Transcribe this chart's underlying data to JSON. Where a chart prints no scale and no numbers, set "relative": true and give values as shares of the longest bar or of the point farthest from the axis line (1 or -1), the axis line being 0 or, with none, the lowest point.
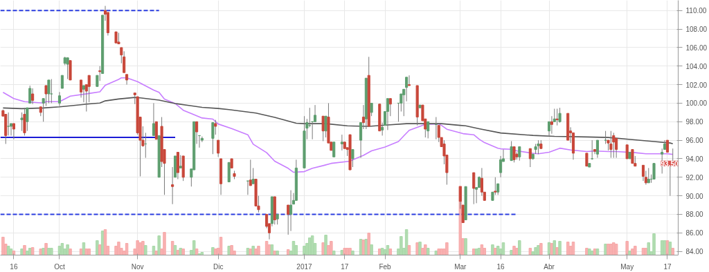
{
  "chart_data": [
    {
      "type": "candlestick",
      "x": [
        "2016-09-12",
        "2016-09-13",
        "2016-09-14",
        "2016-09-15",
        "2016-09-16",
        "2016-09-19",
        "2016-09-20",
        "2016-09-21",
        "2016-09-22",
        "2016-09-23",
        "2016-09-26",
        "2016-09-27",
        "2016-09-28",
        "2016-09-29",
        "2016-09-30",
        "2016-10-03",
        "2016-10-04",
        "2016-10-05",
        "2016-10-06",
        "2016-10-07",
        "2016-10-11",
        "2016-10-12",
        "2016-10-13",
        "2016-10-14",
        "2016-10-17",
        "2016-10-18",
        "2016-10-19",
        "2016-10-20",
        "2016-10-21",
        "2016-10-24",
        "2016-10-25",
        "2016-10-26",
        "2016-10-27",
        "2016-10-28",
        "2016-10-31",
        "2016-11-01",
        "2016-11-02",
        "2016-11-03",
        "2016-11-04",
        "2016-11-07",
        "2016-11-08",
        "2016-11-09",
        "2016-11-10",
        "2016-11-11",
        "2016-11-14",
        "2016-11-15",
        "2016-11-16",
        "2016-11-17",
        "2016-11-18",
        "2016-11-21",
        "2016-11-22",
        "2016-11-23",
        "2016-11-24",
        "2016-11-25",
        "2016-11-29",
        "2016-11-30",
        "2016-12-01",
        "2016-12-02",
        "2016-12-05",
        "2016-12-06",
        "2016-12-07",
        "2016-12-12",
        "2016-12-13",
        "2016-12-14",
        "2016-12-15",
        "2016-12-16",
        "2016-12-19",
        "2016-12-20",
        "2016-12-21",
        "2016-12-22",
        "2016-12-23",
        "2016-12-27",
        "2016-12-28",
        "2016-12-29",
        "2016-12-30",
        "2017-01-02",
        "2017-01-03",
        "2017-01-04",
        "2017-01-05",
        "2017-01-06",
        "2017-01-09",
        "2017-01-10",
        "2017-01-11",
        "2017-01-12",
        "2017-01-13",
        "2017-01-16",
        "2017-01-17",
        "2017-01-18",
        "2017-01-19",
        "2017-01-20",
        "2017-01-23",
        "2017-01-24",
        "2017-01-25",
        "2017-01-26",
        "2017-01-27",
        "2017-01-30",
        "2017-01-31",
        "2017-02-01",
        "2017-02-02",
        "2017-02-03",
        "2017-02-06",
        "2017-02-07",
        "2017-02-08",
        "2017-02-09",
        "2017-02-10",
        "2017-02-13",
        "2017-02-14",
        "2017-02-15",
        "2017-02-16",
        "2017-02-17",
        "2017-02-20",
        "2017-02-21",
        "2017-02-22",
        "2017-02-23",
        "2017-02-24",
        "2017-03-01",
        "2017-03-02",
        "2017-03-03",
        "2017-03-06",
        "2017-03-07",
        "2017-03-08",
        "2017-03-09",
        "2017-03-10",
        "2017-03-13",
        "2017-03-14",
        "2017-03-15",
        "2017-03-16",
        "2017-03-17",
        "2017-03-20",
        "2017-03-21",
        "2017-03-22",
        "2017-03-23",
        "2017-03-27",
        "2017-03-28",
        "2017-03-29",
        "2017-03-30",
        "2017-03-31",
        "2017-04-03",
        "2017-04-04",
        "2017-04-05",
        "2017-04-06",
        "2017-04-07",
        "2017-04-10",
        "2017-04-11",
        "2017-04-12",
        "2017-04-17",
        "2017-04-18",
        "2017-04-19",
        "2017-04-20",
        "2017-04-21",
        "2017-04-24",
        "2017-04-25",
        "2017-04-26",
        "2017-04-27",
        "2017-04-28",
        "2017-05-02",
        "2017-05-03",
        "2017-05-04",
        "2017-05-05",
        "2017-05-08",
        "2017-05-09",
        "2017-05-10",
        "2017-05-11",
        "2017-05-12",
        "2017-05-15",
        "2017-05-16",
        "2017-05-17",
        "2017-05-18",
        "2017-05-19"
      ],
      "ohlc": [
        [
          99.2,
          99.3,
          98.6,
          98.6
        ],
        [
          98.8,
          98.8,
          95.6,
          96.5
        ],
        [
          97.5,
          99.0,
          96.5,
          97.5
        ],
        [
          97.5,
          97.8,
          96.5,
          97.8
        ],
        [
          97.8,
          97.8,
          96.1,
          97.2
        ],
        [
          98.2,
          99.0,
          97.0,
          98.4
        ],
        [
          98.8,
          99.5,
          96.5,
          96.8
        ],
        [
          98.0,
          99.5,
          97.0,
          99.5
        ],
        [
          100.0,
          101.9,
          100.0,
          101.6
        ],
        [
          101.0,
          101.6,
          99.9,
          100.3
        ],
        [
          99.6,
          99.6,
          98.6,
          99.0
        ],
        [
          100.0,
          100.5,
          98.0,
          100.5
        ],
        [
          101.9,
          101.9,
          99.7,
          101.0
        ],
        [
          101.0,
          102.5,
          100.0,
          102.5
        ],
        [
          101.0,
          102.6,
          100.0,
          101.0
        ],
        [
          100.0,
          101.2,
          99.7,
          100.8
        ],
        [
          101.6,
          103.0,
          101.6,
          103.0
        ],
        [
          104.3,
          105.0,
          104.1,
          104.9
        ],
        [
          104.2,
          104.9,
          102.6,
          104.9
        ],
        [
          104.6,
          104.6,
          102.5,
          102.5
        ],
        [
          102.5,
          102.5,
          100.6,
          101.2
        ],
        [
          101.5,
          101.9,
          100.1,
          101.9
        ],
        [
          102.0,
          102.0,
          99.1,
          101.3
        ],
        [
          103.0,
          103.0,
          100.1,
          101.8
        ],
        [
          101.8,
          103.0,
          101.8,
          103.0
        ],
        [
          103.5,
          104.0,
          102.4,
          103.4
        ],
        [
          103.2,
          109.5,
          103.2,
          109.5
        ],
        [
          110.0,
          110.5,
          108.9,
          109.6
        ],
        [
          109.8,
          109.8,
          107.3,
          107.6
        ],
        [
          107.7,
          107.7,
          106.5,
          106.5
        ],
        [
          106.6,
          107.6,
          106.4,
          106.4
        ],
        [
          106.0,
          106.0,
          104.3,
          105.2
        ],
        [
          105.0,
          105.6,
          103.3,
          103.3
        ],
        [
          103.1,
          103.1,
          102.0,
          102.5
        ],
        [
          101.1,
          101.1,
          99.9,
          100.9
        ],
        [
          100.7,
          100.7,
          96.6,
          96.8
        ],
        [
          98.5,
          98.5,
          92.1,
          96.0
        ],
        [
          96.0,
          97.5,
          95.3,
          95.4
        ],
        [
          95.6,
          96.8,
          94.1,
          95.6
        ],
        [
          96.5,
          100.0,
          96.5,
          97.8
        ],
        [
          98.0,
          98.0,
          96.1,
          96.1
        ],
        [
          92.0,
          96.5,
          92.0,
          96.5
        ],
        [
          97.5,
          98.5,
          93.1,
          93.7
        ],
        [
          95.0,
          95.0,
          90.1,
          93.5
        ],
        [
          91.2,
          93.1,
          89.1,
          91.0
        ],
        [
          92.0,
          94.3,
          92.0,
          94.3
        ],
        [
          94.7,
          94.7,
          91.8,
          92.5
        ],
        [
          93.0,
          94.4,
          93.0,
          93.2
        ],
        [
          94.3,
          94.3,
          91.6,
          92.0
        ],
        [
          92.0,
          92.9,
          91.0,
          92.9
        ],
        [
          92.8,
          98.0,
          92.8,
          98.0
        ],
        [
          98.0,
          98.0,
          95.6,
          96.9
        ],
        [
          96.5,
          96.5,
          95.2,
          96.5
        ],
        [
          96.0,
          96.4,
          95.8,
          96.2
        ],
        [
          96.2,
          97.9,
          94.5,
          97.9
        ],
        [
          97.8,
          98.2,
          96.6,
          97.5
        ],
        [
          96.0,
          96.0,
          94.2,
          94.6
        ],
        [
          94.0,
          94.0,
          90.1,
          91.3
        ],
        [
          91.5,
          93.6,
          91.5,
          93.6
        ],
        [
          94.0,
          94.0,
          93.0,
          93.0
        ],
        [
          92.4,
          92.7,
          91.8,
          92.1
        ],
        [
          91.6,
          91.6,
          90.1,
          91.6
        ],
        [
          91.7,
          93.9,
          91.1,
          91.1
        ],
        [
          91.3,
          93.0,
          91.3,
          91.8
        ],
        [
          91.8,
          91.8,
          88.9,
          88.9
        ],
        [
          88.9,
          90.0,
          88.2,
          88.5
        ],
        [
          88.0,
          88.0,
          86.5,
          86.7
        ],
        [
          87.0,
          87.0,
          85.3,
          86.0
        ],
        [
          87.0,
          89.9,
          86.7,
          89.9
        ],
        [
          89.9,
          89.9,
          86.9,
          87.4
        ],
        [
          87.5,
          88.0,
          86.9,
          88.0
        ],
        [
          89.0,
          89.0,
          85.8,
          88.0
        ],
        [
          88.0,
          90.6,
          86.2,
          89.0
        ],
        [
          89.1,
          90.3,
          89.1,
          89.5
        ],
        [
          89.5,
          93.9,
          89.5,
          93.0
        ],
        [
          93.0,
          98.6,
          93.0,
          97.0
        ],
        [
          97.3,
          98.3,
          96.1,
          97.9
        ],
        [
          97.6,
          99.5,
          97.4,
          97.6
        ],
        [
          98.0,
          98.0,
          96.1,
          98.0
        ],
        [
          98.0,
          99.8,
          98.0,
          98.7
        ],
        [
          98.6,
          98.6,
          95.9,
          97.0
        ],
        [
          97.0,
          98.6,
          96.3,
          98.6
        ],
        [
          98.5,
          100.0,
          95.7,
          95.7
        ],
        [
          95.8,
          95.8,
          94.9,
          94.9
        ],
        [
          94.2,
          95.8,
          94.2,
          95.8
        ],
        [
          95.6,
          96.6,
          94.9,
          95.8
        ],
        [
          95.8,
          95.8,
          95.1,
          95.1
        ],
        [
          95.2,
          95.2,
          94.3,
          95.0
        ],
        [
          96.6,
          96.6,
          92.8,
          92.8
        ],
        [
          94.0,
          95.0,
          93.1,
          95.0
        ],
        [
          96.0,
          97.9,
          94.1,
          97.9
        ],
        [
          98.5,
          99.8,
          97.2,
          97.9
        ],
        [
          98.3,
          102.7,
          97.2,
          102.7
        ],
        [
          103.0,
          105.0,
          97.5,
          97.5
        ],
        [
          99.0,
          100.0,
          98.6,
          100.0
        ],
        [
          99.9,
          99.9,
          97.0,
          97.0
        ],
        [
          97.1,
          97.9,
          96.5,
          97.4
        ],
        [
          97.6,
          99.1,
          97.6,
          99.1
        ],
        [
          99.1,
          100.5,
          97.1,
          100.5
        ],
        [
          100.5,
          100.5,
          98.6,
          99.9
        ],
        [
          100.0,
          100.0,
          98.0,
          100.0
        ],
        [
          100.0,
          101.0,
          99.1,
          101.0
        ],
        [
          100.9,
          101.5,
          98.6,
          101.5
        ],
        [
          101.7,
          102.8,
          100.2,
          102.8
        ],
        [
          102.0,
          103.0,
          101.9,
          101.9
        ],
        [
          101.9,
          101.9,
          97.6,
          98.5
        ],
        [
          99.5,
          99.8,
          99.5,
          99.8
        ],
        [
          99.8,
          99.8,
          98.1,
          98.1
        ],
        [
          98.3,
          98.3,
          96.3,
          97.2
        ],
        [
          97.0,
          98.0,
          96.2,
          98.0
        ],
        [
          97.7,
          98.5,
          96.1,
          97.7
        ],
        [
          97.6,
          97.6,
          95.8,
          96.3
        ],
        [
          96.3,
          96.3,
          95.3,
          95.3
        ],
        [
          95.6,
          96.0,
          93.4,
          94.3
        ],
        [
          94.4,
          94.4,
          91.2,
          92.5
        ],
        [
          91.0,
          91.0,
          88.6,
          89.4
        ],
        [
          89.0,
          89.0,
          87.1,
          87.1
        ],
        [
          87.4,
          91.0,
          87.4,
          91.0
        ],
        [
          92.5,
          92.5,
          89.1,
          90.8
        ],
        [
          90.7,
          90.9,
          89.2,
          90.9
        ],
        [
          90.9,
          92.1,
          90.9,
          92.0
        ],
        [
          91.9,
          93.0,
          90.0,
          90.4
        ],
        [
          90.4,
          90.4,
          89.5,
          89.5
        ],
        [
          89.5,
          90.4,
          89.5,
          90.4
        ],
        [
          90.5,
          92.0,
          90.1,
          90.4
        ],
        [
          90.4,
          91.3,
          90.1,
          91.3
        ],
        [
          92.5,
          94.3,
          92.0,
          93.9
        ],
        [
          93.7,
          95.0,
          93.7,
          94.0
        ],
        [
          93.8,
          95.9,
          93.8,
          95.3
        ],
        [
          95.3,
          95.3,
          93.6,
          93.9
        ],
        [
          94.5,
          94.7,
          93.9,
          94.2
        ],
        [
          94.2,
          95.3,
          93.8,
          95.3
        ],
        [
          95.1,
          95.1,
          93.1,
          94.0
        ],
        [
          94.0,
          94.5,
          93.9,
          94.5
        ],
        [
          95.0,
          95.6,
          94.5,
          95.3
        ],
        [
          95.4,
          96.0,
          94.5,
          95.6
        ],
        [
          95.6,
          96.0,
          95.1,
          95.1
        ],
        [
          97.0,
          98.0,
          96.5,
          98.0
        ],
        [
          98.0,
          98.6,
          96.7,
          97.7
        ],
        [
          98.0,
          99.4,
          98.0,
          98.3
        ],
        [
          98.3,
          99.4,
          97.6,
          98.2
        ],
        [
          98.0,
          99.5,
          97.9,
          98.9
        ],
        [
          98.9,
          98.9,
          96.0,
          96.0
        ],
        [
          97.0,
          97.4,
          95.7,
          96.8
        ],
        [
          96.8,
          96.8,
          93.9,
          94.6
        ],
        [
          94.6,
          94.6,
          93.2,
          93.2
        ],
        [
          93.1,
          93.5,
          93.1,
          93.5
        ],
        [
          94.0,
          96.0,
          93.9,
          94.0
        ],
        [
          95.0,
          95.0,
          94.5,
          94.8
        ],
        [
          94.5,
          96.0,
          94.1,
          96.0
        ],
        [
          96.0,
          97.0,
          95.6,
          96.0
        ],
        [
          96.0,
          96.0,
          94.9,
          95.7
        ],
        [
          95.6,
          97.0,
          94.1,
          95.0
        ],
        [
          96.5,
          96.8,
          94.1,
          95.8
        ],
        [
          96.2,
          96.2,
          94.1,
          95.0
        ],
        [
          95.5,
          95.5,
          94.0,
          94.0
        ],
        [
          94.0,
          94.7,
          94.0,
          94.7
        ],
        [
          95.0,
          95.0,
          93.5,
          93.5
        ],
        [
          93.5,
          94.3,
          93.2,
          93.2
        ],
        [
          93.3,
          93.3,
          91.6,
          92.1
        ],
        [
          92.0,
          92.7,
          91.2,
          91.4
        ],
        [
          91.4,
          93.0,
          91.4,
          91.8
        ],
        [
          91.8,
          92.3,
          91.4,
          91.8
        ],
        [
          91.8,
          93.5,
          91.8,
          93.5
        ],
        [
          94.5,
          95.1,
          92.4,
          94.7
        ],
        [
          95.0,
          96.0,
          95.0,
          95.6
        ],
        [
          96.0,
          96.0,
          94.7,
          94.7
        ],
        [
          93.7,
          93.7,
          90.0,
          93.7
        ],
        [
          93.6,
          95.1,
          93.5,
          93.5
        ]
      ],
      "colors": [
        "#c8473a",
        "#c8473a",
        "#5e9e6f",
        "#5e9e6f",
        "#c8473a",
        "#5e9e6f",
        "#c8473a",
        "#5e9e6f",
        "#5e9e6f",
        "#c8473a",
        "#c8473a",
        "#5e9e6f",
        "#c8473a",
        "#5e9e6f",
        "#5e9e6f",
        "#5e9e6f",
        "#5e9e6f",
        "#5e9e6f",
        "#5e9e6f",
        "#c8473a",
        "#c8473a",
        "#5e9e6f",
        "#c8473a",
        "#c8473a",
        "#5e9e6f",
        "#c8473a",
        "#5e9e6f",
        "#c8473a",
        "#c8473a",
        "#c8473a",
        "#c8473a",
        "#c8473a",
        "#c8473a",
        "#c8473a",
        "#c8473a",
        "#c8473a",
        "#c8473a",
        "#c8473a",
        "#5e9e6f",
        "#5e9e6f",
        "#c8473a",
        "#5e9e6f",
        "#c8473a",
        "#c8473a",
        "#c8473a",
        "#5e9e6f",
        "#c8473a",
        "#5e9e6f",
        "#c8473a",
        "#5e9e6f",
        "#5e9e6f",
        "#c8473a",
        "#5e9e6f",
        "#5e9e6f",
        "#5e9e6f",
        "#c8473a",
        "#c8473a",
        "#c8473a",
        "#5e9e6f",
        "#c8473a",
        "#c8473a",
        "#5e9e6f",
        "#c8473a",
        "#5e9e6f",
        "#c8473a",
        "#c8473a",
        "#c8473a",
        "#c8473a",
        "#5e9e6f",
        "#c8473a",
        "#5e9e6f",
        "#c8473a",
        "#5e9e6f",
        "#5e9e6f",
        "#5e9e6f",
        "#5e9e6f",
        "#5e9e6f",
        "#5e9e6f",
        "#5e9e6f",
        "#5e9e6f",
        "#c8473a",
        "#5e9e6f",
        "#c8473a",
        "#c8473a",
        "#5e9e6f",
        "#5e9e6f",
        "#c8473a",
        "#c8473a",
        "#c8473a",
        "#5e9e6f",
        "#5e9e6f",
        "#c8473a",
        "#5e9e6f",
        "#c8473a",
        "#5e9e6f",
        "#c8473a",
        "#5e9e6f",
        "#5e9e6f",
        "#5e9e6f",
        "#c8473a",
        "#5e9e6f",
        "#5e9e6f",
        "#5e9e6f",
        "#5e9e6f",
        "#c8473a",
        "#c8473a",
        "#5e9e6f",
        "#c8473a",
        "#c8473a",
        "#5e9e6f",
        "#5e9e6f",
        "#c8473a",
        "#c8473a",
        "#c8473a",
        "#c8473a",
        "#c8473a",
        "#c8473a",
        "#5e9e6f",
        "#c8473a",
        "#5e9e6f",
        "#5e9e6f",
        "#c8473a",
        "#c8473a",
        "#5e9e6f",
        "#c8473a",
        "#5e9e6f",
        "#5e9e6f",
        "#5e9e6f",
        "#5e9e6f",
        "#c8473a",
        "#c8473a",
        "#5e9e6f",
        "#c8473a",
        "#5e9e6f",
        "#5e9e6f",
        "#5e9e6f",
        "#c8473a",
        "#5e9e6f",
        "#c8473a",
        "#5e9e6f",
        "#c8473a",
        "#5e9e6f",
        "#c8473a",
        "#c8473a",
        "#c8473a",
        "#c8473a",
        "#5e9e6f",
        "#5e9e6f",
        "#c8473a",
        "#5e9e6f",
        "#5e9e6f",
        "#c8473a",
        "#c8473a",
        "#c8473a",
        "#c8473a",
        "#c8473a",
        "#5e9e6f",
        "#c8473a",
        "#c8473a",
        "#c8473a",
        "#c8473a",
        "#5e9e6f",
        "#5e9e6f",
        "#5e9e6f",
        "#5e9e6f",
        "#5e9e6f",
        "#c8473a",
        "#5e9e6f",
        "#c8473a"
      ],
      "series": [
        {
          "type": "line",
          "color": "#c77dff",
          "x": [
            "2016-09-12",
            "2016-09-16",
            "2016-09-20",
            "2016-09-27",
            "2016-09-28",
            "2016-10-03",
            "2016-10-07",
            "2016-10-14",
            "2016-10-18",
            "2016-10-20",
            "2016-10-25",
            "2016-10-26",
            "2016-10-28",
            "2016-11-01",
            "2016-11-07",
            "2016-11-09",
            "2016-11-11",
            "2016-11-15",
            "2016-11-18",
            "2016-11-21",
            "2016-11-25",
            "2016-11-29",
            "2016-12-01",
            "2016-12-06",
            "2016-12-12",
            "2016-12-14",
            "2016-12-19",
            "2016-12-22",
            "2016-12-27",
            "2016-12-29",
            "2017-01-02",
            "2017-01-05",
            "2017-01-09",
            "2017-01-12",
            "2017-01-19",
            "2017-01-20",
            "2017-01-24",
            "2017-01-27",
            "2017-02-01",
            "2017-02-06",
            "2017-02-08",
            "2017-02-10",
            "2017-02-14",
            "2017-02-16",
            "2017-02-21",
            "2017-02-22",
            "2017-02-24",
            "2017-03-02",
            "2017-03-06",
            "2017-03-08",
            "2017-03-10",
            "2017-03-15",
            "2017-03-16",
            "2017-03-20",
            "2017-03-22",
            "2017-03-28",
            "2017-03-30",
            "2017-04-03",
            "2017-04-07",
            "2017-04-11",
            "2017-04-17",
            "2017-04-20",
            "2017-04-25",
            "2017-04-28",
            "2017-05-05",
            "2017-05-09",
            "2017-05-12",
            "2017-05-17",
            "2017-05-19"
          ],
          "values": [
            101.17,
            100.5,
            100.16,
            100.01,
            100.16,
            100.16,
            100.76,
            101.05,
            101.22,
            101.94,
            102.57,
            102.74,
            102.74,
            102.33,
            101.41,
            101.17,
            100.45,
            99.96,
            99.24,
            98.88,
            98.4,
            98.28,
            97.75,
            97.26,
            96.59,
            95.57,
            94.66,
            93.74,
            92.97,
            92.54,
            92.61,
            92.97,
            93.26,
            93.5,
            93.74,
            93.89,
            94.37,
            94.85,
            95.26,
            95.86,
            96.47,
            97.07,
            97.5,
            97.72,
            97.75,
            97.6,
            97.19,
            96.71,
            96.59,
            96.11,
            95.74,
            95.14,
            95.07,
            95.02,
            94.85,
            94.59,
            94.54,
            94.71,
            95.14,
            94.95,
            94.78,
            94.83,
            94.78,
            94.78,
            94.66,
            94.54,
            94.54,
            94.54,
            94.47
          ]
        },
        {
          "type": "line",
          "color": "#555555",
          "x": [
            "2016-09-12",
            "2016-09-19",
            "2016-09-27",
            "2016-10-03",
            "2016-10-07",
            "2016-10-14",
            "2016-10-18",
            "2016-10-20",
            "2016-10-25",
            "2016-10-31",
            "2016-11-02",
            "2016-11-09",
            "2016-11-15",
            "2016-11-21",
            "2016-11-25",
            "2016-12-01",
            "2016-12-05",
            "2016-12-15",
            "2016-12-22",
            "2016-12-30",
            "2017-01-02",
            "2017-01-10",
            "2017-01-18",
            "2017-01-26",
            "2017-02-02",
            "2017-02-09",
            "2017-02-17",
            "2017-02-22",
            "2017-03-01",
            "2017-03-03",
            "2017-03-08",
            "2017-03-16",
            "2017-03-28",
            "2017-04-05",
            "2017-04-17",
            "2017-04-25",
            "2017-05-04",
            "2017-05-12",
            "2017-05-18",
            "2017-05-19"
          ],
          "values": [
            99.48,
            99.41,
            99.48,
            99.6,
            99.72,
            99.92,
            100.01,
            100.25,
            100.45,
            100.62,
            100.57,
            100.33,
            99.96,
            99.72,
            99.55,
            99.43,
            99.31,
            98.93,
            98.47,
            97.84,
            97.79,
            97.79,
            97.55,
            97.5,
            97.65,
            97.79,
            97.79,
            97.79,
            97.6,
            97.55,
            97.24,
            96.78,
            96.52,
            96.42,
            96.35,
            96.3,
            96.06,
            95.86,
            95.7,
            95.62
          ]
        },
        {
          "type": "line",
          "color": "#2a3de0",
          "line_style": "dashed",
          "x": [
            "2016-09-11",
            "2016-11-09"
          ],
          "values": [
            110.0,
            110.0
          ]
        },
        {
          "type": "line",
          "color": "#1a1ad6",
          "line_style": "solid",
          "x": [
            "2016-09-11",
            "2016-11-15"
          ],
          "values": [
            96.3,
            96.3
          ]
        },
        {
          "type": "line",
          "color": "#2a3de0",
          "line_style": "dashed",
          "x": [
            "2016-09-11",
            "2017-03-22"
          ],
          "values": [
            88.0,
            88.0
          ]
        }
      ],
      "xlim": [
        "2016-09-11",
        "2017-05-21"
      ],
      "xticks": [
        {
          "value": "2016-09-16",
          "label": "16"
        },
        {
          "value": "2016-10-03",
          "label": "Oct"
        },
        {
          "value": "2016-11-01",
          "label": "Nov"
        },
        {
          "value": "2016-12-01",
          "label": "Dic"
        },
        {
          "value": "2017-01-02",
          "label": "2017"
        },
        {
          "value": "2017-01-17",
          "label": "17"
        },
        {
          "value": "2017-02-01",
          "label": "Feb"
        },
        {
          "value": "2017-03-01",
          "label": "Mar"
        },
        {
          "value": "2017-03-16",
          "label": "16"
        },
        {
          "value": "2017-04-03",
          "label": "Abr"
        },
        {
          "value": "2017-05-02",
          "label": "May"
        },
        {
          "value": "2017-05-17",
          "label": "17"
        }
      ],
      "ylim": [
        83.6,
        111.1
      ],
      "yticks": [
        {
          "value": 84,
          "label": "84.00"
        },
        {
          "value": 86,
          "label": "86.00"
        },
        {
          "value": 88,
          "label": "88.00"
        },
        {
          "value": 90,
          "label": "90.00"
        },
        {
          "value": 92,
          "label": "92.00"
        },
        {
          "value": 94,
          "label": "94.00"
        },
        {
          "value": 96,
          "label": "96.00"
        },
        {
          "value": 98,
          "label": "98.00"
        },
        {
          "value": 100,
          "label": "100.00"
        },
        {
          "value": 102,
          "label": "102.00"
        },
        {
          "value": 104,
          "label": "104.00"
        },
        {
          "value": 106,
          "label": "106.00"
        },
        {
          "value": 108,
          "label": "108.00"
        },
        {
          "value": 110,
          "label": "110.00"
        }
      ],
      "annotations": [
        {
          "text": "93.50",
          "y": 93.5
        }
      ],
      "grid": true
    },
    {
      "type": "bar",
      "relative": true,
      "x": [
        "2016-09-12",
        "2016-09-13",
        "2016-09-14",
        "2016-09-15",
        "2016-09-16",
        "2016-09-19",
        "2016-09-20",
        "2016-09-21",
        "2016-09-22",
        "2016-09-23",
        "2016-09-26",
        "2016-09-27",
        "2016-09-28",
        "2016-09-29",
        "2016-09-30",
        "2016-10-03",
        "2016-10-04",
        "2016-10-05",
        "2016-10-06",
        "2016-10-07",
        "2016-10-11",
        "2016-10-12",
        "2016-10-13",
        "2016-10-14",
        "2016-10-17",
        "2016-10-18",
        "2016-10-19",
        "2016-10-20",
        "2016-10-21",
        "2016-10-24",
        "2016-10-25",
        "2016-10-26",
        "2016-10-27",
        "2016-10-28",
        "2016-10-31",
        "2016-11-01",
        "2016-11-02",
        "2016-11-03",
        "2016-11-04",
        "2016-11-07",
        "2016-11-08",
        "2016-11-09",
        "2016-11-10",
        "2016-11-11",
        "2016-11-14",
        "2016-11-15",
        "2016-11-16",
        "2016-11-17",
        "2016-11-18",
        "2016-11-21",
        "2016-11-22",
        "2016-11-23",
        "2016-11-24",
        "2016-11-25",
        "2016-11-29",
        "2016-11-30",
        "2016-12-01",
        "2016-12-02",
        "2016-12-05",
        "2016-12-06",
        "2016-12-07",
        "2016-12-12",
        "2016-12-13",
        "2016-12-14",
        "2016-12-15",
        "2016-12-16",
        "2016-12-19",
        "2016-12-20",
        "2016-12-21",
        "2016-12-22",
        "2016-12-23",
        "2016-12-27",
        "2016-12-28",
        "2016-12-29",
        "2016-12-30",
        "2017-01-02",
        "2017-01-03",
        "2017-01-04",
        "2017-01-05",
        "2017-01-06",
        "2017-01-09",
        "2017-01-10",
        "2017-01-11",
        "2017-01-12",
        "2017-01-13",
        "2017-01-16",
        "2017-01-17",
        "2017-01-18",
        "2017-01-19",
        "2017-01-20",
        "2017-01-23",
        "2017-01-24",
        "2017-01-25",
        "2017-01-26",
        "2017-01-27",
        "2017-01-30",
        "2017-01-31",
        "2017-02-01",
        "2017-02-02",
        "2017-02-03",
        "2017-02-06",
        "2017-02-07",
        "2017-02-08",
        "2017-02-09",
        "2017-02-10",
        "2017-02-13",
        "2017-02-14",
        "2017-02-15",
        "2017-02-16",
        "2017-02-17",
        "2017-02-20",
        "2017-02-21",
        "2017-02-22",
        "2017-02-23",
        "2017-02-24",
        "2017-03-01",
        "2017-03-02",
        "2017-03-03",
        "2017-03-06",
        "2017-03-07",
        "2017-03-08",
        "2017-03-09",
        "2017-03-10",
        "2017-03-13",
        "2017-03-14",
        "2017-03-15",
        "2017-03-16",
        "2017-03-17",
        "2017-03-20",
        "2017-03-21",
        "2017-03-22",
        "2017-03-23",
        "2017-03-27",
        "2017-03-28",
        "2017-03-29",
        "2017-03-30",
        "2017-03-31",
        "2017-04-03",
        "2017-04-04",
        "2017-04-05",
        "2017-04-06",
        "2017-04-07",
        "2017-04-10",
        "2017-04-11",
        "2017-04-12",
        "2017-04-17",
        "2017-04-18",
        "2017-04-19",
        "2017-04-20",
        "2017-04-21",
        "2017-04-24",
        "2017-04-25",
        "2017-04-26",
        "2017-04-27",
        "2017-04-28",
        "2017-05-02",
        "2017-05-03",
        "2017-05-04",
        "2017-05-05",
        "2017-05-08",
        "2017-05-09",
        "2017-05-10",
        "2017-05-11",
        "2017-05-12",
        "2017-05-15",
        "2017-05-16",
        "2017-05-17",
        "2017-05-18",
        "2017-05-19"
      ],
      "values": [
        0.26,
        0.16,
        0.13,
        0.09,
        0.06,
        0.09,
        0.14,
        0.06,
        0.1,
        0.11,
        0.09,
        0.1,
        0.17,
        0.1,
        0.1,
        0.13,
        0.17,
        0.09,
        0.15,
        0.09,
        0.09,
        0.18,
        0.09,
        0.09,
        0.21,
        0.15,
        0.35,
        0.37,
        0.13,
        0.13,
        0.19,
        0.1,
        0.06,
        0.17,
        0.09,
        0.21,
        0.18,
        0.2,
        0.14,
        0.13,
        0.06,
        0.28,
        0.09,
        0.33,
        0.2,
        0.14,
        0.07,
        0.1,
        0.09,
        0.07,
        0.21,
        0.09,
        0.02,
        0.04,
        0.11,
        0.09,
        0.1,
        0.26,
        0.13,
        0.14,
        0.06,
        0.1,
        0.09,
        0.13,
        0.09,
        0.13,
        0.2,
        0.15,
        0.15,
        0.06,
        0.06,
        0.08,
        0.06,
        0.2,
        0.14,
        0.13,
        0.17,
        0.25,
        0.28,
        0.17,
        0.18,
        0.29,
        0.14,
        0.2,
        0.06,
        0.07,
        0.1,
        0.1,
        0.1,
        0.06,
        0.23,
        0.22,
        0.23,
        0.32,
        0.15,
        0.09,
        0.1,
        0.08,
        0.14,
        0.09,
        0.09,
        0.27,
        0.1,
        0.37,
        0.14,
        0.18,
        0.19,
        0.1,
        0.15,
        0.1,
        0.06,
        0.09,
        0.09,
        0.09,
        0.18,
        1.0,
        0.24,
        0.24,
        0.09,
        0.09,
        0.1,
        0.15,
        0.1,
        0.15,
        0.1,
        0.13,
        0.09,
        0.18,
        0.07,
        0.13,
        0.1,
        0.21,
        0.1,
        0.05,
        0.11,
        0.14,
        0.17,
        0.18,
        0.17,
        0.21,
        0.11,
        0.2,
        0.19,
        0.13,
        0.19,
        0.1,
        0.09,
        0.06,
        0.09,
        0.09,
        0.16,
        0.16,
        0.16,
        0.18,
        0.16,
        0.2,
        0.06,
        0.09,
        0.13,
        0.1,
        0.1,
        0.18,
        0.05,
        0.31,
        0.21,
        0.21,
        0.21,
        0.19,
        0.1
      ],
      "colors": [
        "#f7a8a8",
        "#f7a8a8",
        "#a8d8a8",
        "#a8d8a8",
        "#f7a8a8",
        "#a8d8a8",
        "#f7a8a8",
        "#a8d8a8",
        "#a8d8a8",
        "#f7a8a8",
        "#f7a8a8",
        "#a8d8a8",
        "#f7a8a8",
        "#a8d8a8",
        "#a8d8a8",
        "#a8d8a8",
        "#a8d8a8",
        "#a8d8a8",
        "#a8d8a8",
        "#f7a8a8",
        "#f7a8a8",
        "#a8d8a8",
        "#f7a8a8",
        "#f7a8a8",
        "#a8d8a8",
        "#f7a8a8",
        "#a8d8a8",
        "#f7a8a8",
        "#f7a8a8",
        "#f7a8a8",
        "#f7a8a8",
        "#f7a8a8",
        "#f7a8a8",
        "#f7a8a8",
        "#f7a8a8",
        "#f7a8a8",
        "#f7a8a8",
        "#f7a8a8",
        "#a8d8a8",
        "#a8d8a8",
        "#f7a8a8",
        "#a8d8a8",
        "#f7a8a8",
        "#f7a8a8",
        "#f7a8a8",
        "#a8d8a8",
        "#f7a8a8",
        "#a8d8a8",
        "#f7a8a8",
        "#a8d8a8",
        "#a8d8a8",
        "#f7a8a8",
        "#a8d8a8",
        "#a8d8a8",
        "#a8d8a8",
        "#f7a8a8",
        "#f7a8a8",
        "#f7a8a8",
        "#a8d8a8",
        "#f7a8a8",
        "#f7a8a8",
        "#a8d8a8",
        "#f7a8a8",
        "#a8d8a8",
        "#f7a8a8",
        "#f7a8a8",
        "#f7a8a8",
        "#f7a8a8",
        "#a8d8a8",
        "#f7a8a8",
        "#a8d8a8",
        "#f7a8a8",
        "#a8d8a8",
        "#a8d8a8",
        "#a8d8a8",
        "#a8d8a8",
        "#a8d8a8",
        "#a8d8a8",
        "#a8d8a8",
        "#a8d8a8",
        "#f7a8a8",
        "#a8d8a8",
        "#f7a8a8",
        "#f7a8a8",
        "#a8d8a8",
        "#a8d8a8",
        "#f7a8a8",
        "#f7a8a8",
        "#f7a8a8",
        "#a8d8a8",
        "#a8d8a8",
        "#f7a8a8",
        "#a8d8a8",
        "#f7a8a8",
        "#a8d8a8",
        "#f7a8a8",
        "#a8d8a8",
        "#a8d8a8",
        "#a8d8a8",
        "#f7a8a8",
        "#a8d8a8",
        "#a8d8a8",
        "#a8d8a8",
        "#a8d8a8",
        "#f7a8a8",
        "#f7a8a8",
        "#a8d8a8",
        "#f7a8a8",
        "#f7a8a8",
        "#a8d8a8",
        "#a8d8a8",
        "#f7a8a8",
        "#f7a8a8",
        "#f7a8a8",
        "#f7a8a8",
        "#f7a8a8",
        "#f7a8a8",
        "#a8d8a8",
        "#f7a8a8",
        "#a8d8a8",
        "#a8d8a8",
        "#f7a8a8",
        "#f7a8a8",
        "#a8d8a8",
        "#f7a8a8",
        "#a8d8a8",
        "#a8d8a8",
        "#a8d8a8",
        "#a8d8a8",
        "#f7a8a8",
        "#f7a8a8",
        "#a8d8a8",
        "#f7a8a8",
        "#a8d8a8",
        "#a8d8a8",
        "#a8d8a8",
        "#f7a8a8",
        "#a8d8a8",
        "#f7a8a8",
        "#a8d8a8",
        "#f7a8a8",
        "#a8d8a8",
        "#f7a8a8",
        "#f7a8a8",
        "#f7a8a8",
        "#f7a8a8",
        "#a8d8a8",
        "#a8d8a8",
        "#f7a8a8",
        "#a8d8a8",
        "#a8d8a8",
        "#f7a8a8",
        "#f7a8a8",
        "#f7a8a8",
        "#f7a8a8",
        "#f7a8a8",
        "#a8d8a8",
        "#f7a8a8",
        "#f7a8a8",
        "#f7a8a8",
        "#f7a8a8",
        "#a8d8a8",
        "#a8d8a8",
        "#a8d8a8",
        "#a8d8a8",
        "#a8d8a8",
        "#f7a8a8",
        "#a8d8a8",
        "#f7a8a8"
      ],
      "xlim": [
        "2016-09-11",
        "2017-05-21"
      ]
    }
  ]
}
